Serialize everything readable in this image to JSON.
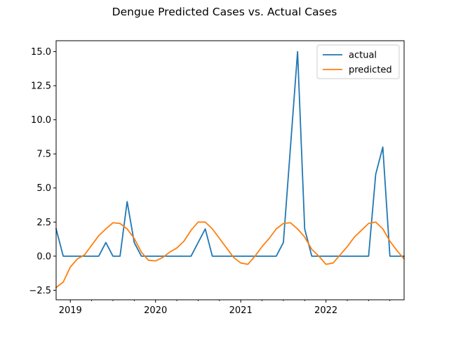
{
  "chart_data": {
    "type": "line",
    "title": "Dengue Predicted Cases vs. Actual Cases",
    "xlabel": "",
    "ylabel": "",
    "x_start": "2018-11",
    "x_end": "2022-12",
    "xlim": [
      "2018-11",
      "2022-12"
    ],
    "ylim": [
      -3.2,
      15.8
    ],
    "x_tick_labels": [
      "2019",
      "2020",
      "2021",
      "2022"
    ],
    "y_ticks": [
      -2.5,
      0.0,
      2.5,
      5.0,
      7.5,
      10.0,
      12.5,
      15.0
    ],
    "y_tick_labels": [
      "−2.5",
      "0.0",
      "2.5",
      "5.0",
      "7.5",
      "10.0",
      "12.5",
      "15.0"
    ],
    "legend_position": "top-right",
    "grid": false,
    "x": [
      "2018-11",
      "2018-12",
      "2019-01",
      "2019-02",
      "2019-03",
      "2019-04",
      "2019-05",
      "2019-06",
      "2019-07",
      "2019-08",
      "2019-09",
      "2019-10",
      "2019-11",
      "2019-12",
      "2020-01",
      "2020-02",
      "2020-03",
      "2020-04",
      "2020-05",
      "2020-06",
      "2020-07",
      "2020-08",
      "2020-09",
      "2020-10",
      "2020-11",
      "2020-12",
      "2021-01",
      "2021-02",
      "2021-03",
      "2021-04",
      "2021-05",
      "2021-06",
      "2021-07",
      "2021-08",
      "2021-09",
      "2021-10",
      "2021-11",
      "2021-12",
      "2022-01",
      "2022-02",
      "2022-03",
      "2022-04",
      "2022-05",
      "2022-06",
      "2022-07",
      "2022-08",
      "2022-09",
      "2022-10",
      "2022-11",
      "2022-12"
    ],
    "series": [
      {
        "name": "actual",
        "color": "#1f77b4",
        "values": [
          2,
          0,
          0,
          0,
          0,
          0,
          0,
          1,
          0,
          0,
          4,
          1,
          0,
          0,
          0,
          0,
          0,
          0,
          0,
          0,
          1,
          2,
          0,
          0,
          0,
          0,
          0,
          0,
          0,
          0,
          0,
          0,
          1,
          8,
          15,
          2,
          0,
          0,
          0,
          0,
          0,
          0,
          0,
          0,
          0,
          6,
          8,
          0,
          0,
          0
        ]
      },
      {
        "name": "predicted",
        "color": "#ff7f0e",
        "values": [
          -2.3,
          -1.9,
          -0.8,
          -0.2,
          0.1,
          0.8,
          1.5,
          2.0,
          2.45,
          2.4,
          2.0,
          1.3,
          0.3,
          -0.3,
          -0.35,
          -0.1,
          0.3,
          0.6,
          1.1,
          1.9,
          2.5,
          2.5,
          2.0,
          1.3,
          0.6,
          -0.1,
          -0.5,
          -0.6,
          0.0,
          0.7,
          1.3,
          2.0,
          2.4,
          2.45,
          2.0,
          1.4,
          0.5,
          0.0,
          -0.6,
          -0.5,
          0.1,
          0.7,
          1.4,
          1.9,
          2.4,
          2.5,
          2.0,
          1.1,
          0.4,
          -0.2
        ]
      }
    ]
  }
}
